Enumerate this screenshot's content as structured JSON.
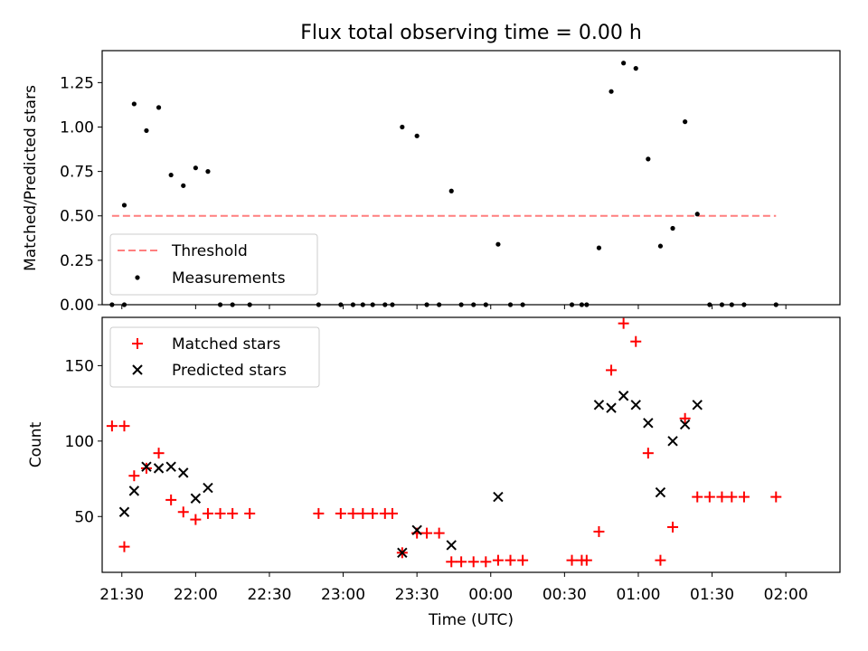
{
  "figure": {
    "title": "Flux total observing time = 0.00 h"
  },
  "chart_data": [
    {
      "type": "scatter",
      "panel": "top",
      "ylabel": "Matched/Predicted stars",
      "xlabel": "",
      "ylim": [
        0,
        1.43
      ],
      "xlim_minutes_from_2130": [
        -8,
        292
      ],
      "yticks": [
        "0.00",
        "0.25",
        "0.50",
        "0.75",
        "1.00",
        "1.25"
      ],
      "ytick_values": [
        0,
        0.25,
        0.5,
        0.75,
        1.0,
        1.25
      ],
      "legend_position": "lower-left",
      "threshold": {
        "name": "Threshold",
        "y": 0.5,
        "x_range_minutes": [
          -4,
          266
        ],
        "color": "#ff7f7f"
      },
      "series": [
        {
          "name": "Measurements",
          "color": "#000000",
          "points": [
            [
              -4,
              0
            ],
            [
              1,
              0
            ],
            [
              1,
              0.56
            ],
            [
              5,
              1.13
            ],
            [
              10,
              0.98
            ],
            [
              15,
              1.11
            ],
            [
              20,
              0.73
            ],
            [
              25,
              0.67
            ],
            [
              30,
              0.77
            ],
            [
              35,
              0.75
            ],
            [
              40,
              0
            ],
            [
              45,
              0
            ],
            [
              52,
              0
            ],
            [
              80,
              0
            ],
            [
              89,
              0
            ],
            [
              94,
              0
            ],
            [
              98,
              0
            ],
            [
              102,
              0
            ],
            [
              107,
              0
            ],
            [
              110,
              0
            ],
            [
              114,
              1.0
            ],
            [
              120,
              0.95
            ],
            [
              124,
              0
            ],
            [
              129,
              0
            ],
            [
              134,
              0.64
            ],
            [
              138,
              0
            ],
            [
              143,
              0
            ],
            [
              148,
              0
            ],
            [
              153,
              0.34
            ],
            [
              158,
              0
            ],
            [
              163,
              0
            ],
            [
              183,
              0
            ],
            [
              187,
              0
            ],
            [
              189,
              0
            ],
            [
              194,
              0.32
            ],
            [
              199,
              1.2
            ],
            [
              204,
              1.36
            ],
            [
              209,
              1.33
            ],
            [
              214,
              0.82
            ],
            [
              219,
              0.33
            ],
            [
              224,
              0.43
            ],
            [
              229,
              1.03
            ],
            [
              234,
              0.51
            ],
            [
              239,
              0
            ],
            [
              244,
              0
            ],
            [
              248,
              0
            ],
            [
              253,
              0
            ],
            [
              266,
              0
            ]
          ]
        }
      ]
    },
    {
      "type": "scatter",
      "panel": "bottom",
      "ylabel": "Count",
      "xlabel": "Time (UTC)",
      "ylim": [
        13,
        182
      ],
      "xlim_minutes_from_2130": [
        -8,
        292
      ],
      "yticks": [
        "50",
        "100",
        "150"
      ],
      "ytick_values": [
        50,
        100,
        150
      ],
      "xticks": [
        "21:30",
        "22:00",
        "22:30",
        "23:00",
        "23:30",
        "00:00",
        "00:30",
        "01:00",
        "01:30",
        "02:00"
      ],
      "xtick_minutes": [
        0,
        30,
        60,
        90,
        120,
        150,
        180,
        210,
        240,
        270
      ],
      "legend_position": "top-left",
      "series": [
        {
          "name": "Matched stars",
          "marker": "plus",
          "color": "#ff0000",
          "points": [
            [
              -4,
              110
            ],
            [
              1,
              110
            ],
            [
              1,
              30
            ],
            [
              5,
              77
            ],
            [
              10,
              82
            ],
            [
              15,
              92
            ],
            [
              20,
              61
            ],
            [
              25,
              53
            ],
            [
              30,
              48
            ],
            [
              35,
              52
            ],
            [
              40,
              52
            ],
            [
              45,
              52
            ],
            [
              52,
              52
            ],
            [
              80,
              52
            ],
            [
              89,
              52
            ],
            [
              94,
              52
            ],
            [
              98,
              52
            ],
            [
              102,
              52
            ],
            [
              107,
              52
            ],
            [
              110,
              52
            ],
            [
              114,
              26
            ],
            [
              120,
              39
            ],
            [
              124,
              39
            ],
            [
              129,
              39
            ],
            [
              134,
              20
            ],
            [
              138,
              20
            ],
            [
              143,
              20
            ],
            [
              148,
              20
            ],
            [
              153,
              21
            ],
            [
              158,
              21
            ],
            [
              163,
              21
            ],
            [
              183,
              21
            ],
            [
              187,
              21
            ],
            [
              189,
              21
            ],
            [
              194,
              40
            ],
            [
              199,
              147
            ],
            [
              204,
              178
            ],
            [
              209,
              166
            ],
            [
              214,
              92
            ],
            [
              219,
              21
            ],
            [
              224,
              43
            ],
            [
              229,
              115
            ],
            [
              234,
              63
            ],
            [
              239,
              63
            ],
            [
              244,
              63
            ],
            [
              248,
              63
            ],
            [
              253,
              63
            ],
            [
              266,
              63
            ]
          ]
        },
        {
          "name": "Predicted stars",
          "marker": "x",
          "color": "#000000",
          "points": [
            [
              1,
              53
            ],
            [
              5,
              67
            ],
            [
              10,
              83
            ],
            [
              15,
              82
            ],
            [
              20,
              83
            ],
            [
              25,
              79
            ],
            [
              30,
              62
            ],
            [
              35,
              69
            ],
            [
              114,
              26
            ],
            [
              120,
              41
            ],
            [
              134,
              31
            ],
            [
              153,
              63
            ],
            [
              194,
              124
            ],
            [
              199,
              122
            ],
            [
              204,
              130
            ],
            [
              209,
              124
            ],
            [
              214,
              112
            ],
            [
              219,
              66
            ],
            [
              224,
              100
            ],
            [
              229,
              111
            ],
            [
              234,
              124
            ]
          ]
        }
      ]
    }
  ]
}
